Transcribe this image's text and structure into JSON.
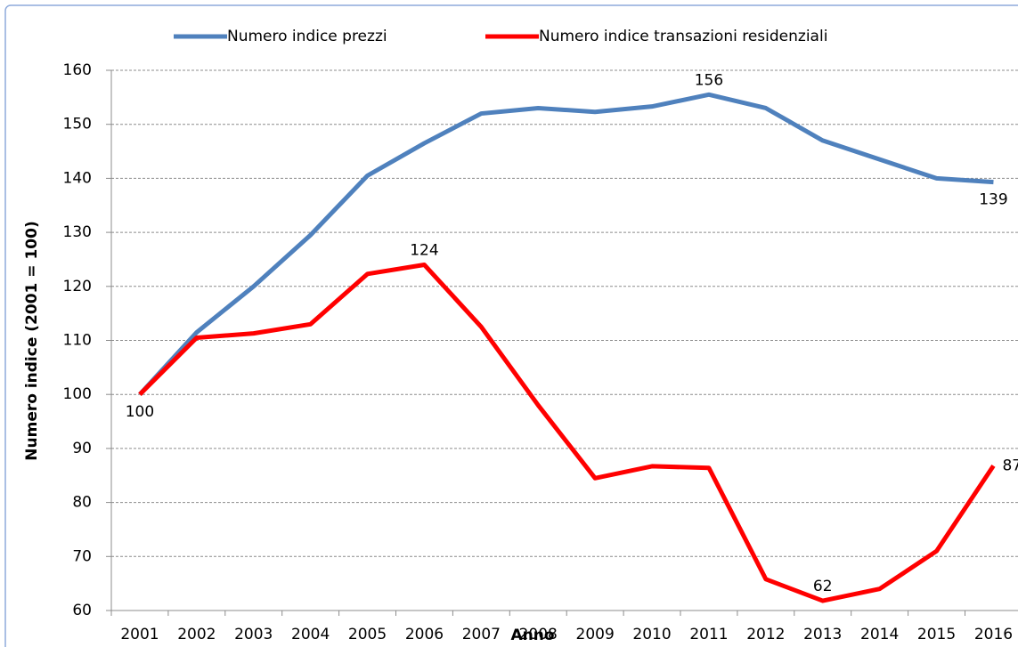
{
  "chart_data": {
    "type": "line",
    "x_label": "Anno",
    "y_label": "Numero indice  (2001 = 100)",
    "categories": [
      "2001",
      "2002",
      "2003",
      "2004",
      "2005",
      "2006",
      "2007",
      "2008",
      "2009",
      "2010",
      "2011",
      "2012",
      "2013",
      "2014",
      "2015",
      "2016"
    ],
    "series": [
      {
        "name": "Numero indice prezzi",
        "color": "#4f81bd",
        "values": [
          100,
          111.5,
          120,
          129.5,
          140.5,
          146.5,
          152,
          153,
          152.3,
          153.3,
          155.5,
          153,
          147,
          143.5,
          140,
          139.3
        ],
        "value_labels": [
          null,
          null,
          null,
          null,
          null,
          null,
          null,
          null,
          null,
          null,
          "156",
          null,
          null,
          null,
          null,
          "139"
        ]
      },
      {
        "name": "Numero indice transazioni  residenziali",
        "color": "#ff0000",
        "values": [
          100,
          110.5,
          111.3,
          113,
          122.3,
          124,
          112.5,
          98,
          84.5,
          86.7,
          86.4,
          65.8,
          61.8,
          64,
          71,
          86.8
        ],
        "value_labels": [
          "100",
          null,
          null,
          null,
          null,
          "124",
          null,
          null,
          null,
          null,
          null,
          null,
          "62",
          null,
          null,
          "87"
        ]
      }
    ],
    "ylim": [
      60,
      160
    ],
    "yticks": [
      60,
      70,
      80,
      90,
      100,
      110,
      120,
      130,
      140,
      150,
      160
    ],
    "grid": true,
    "legend": "top"
  }
}
